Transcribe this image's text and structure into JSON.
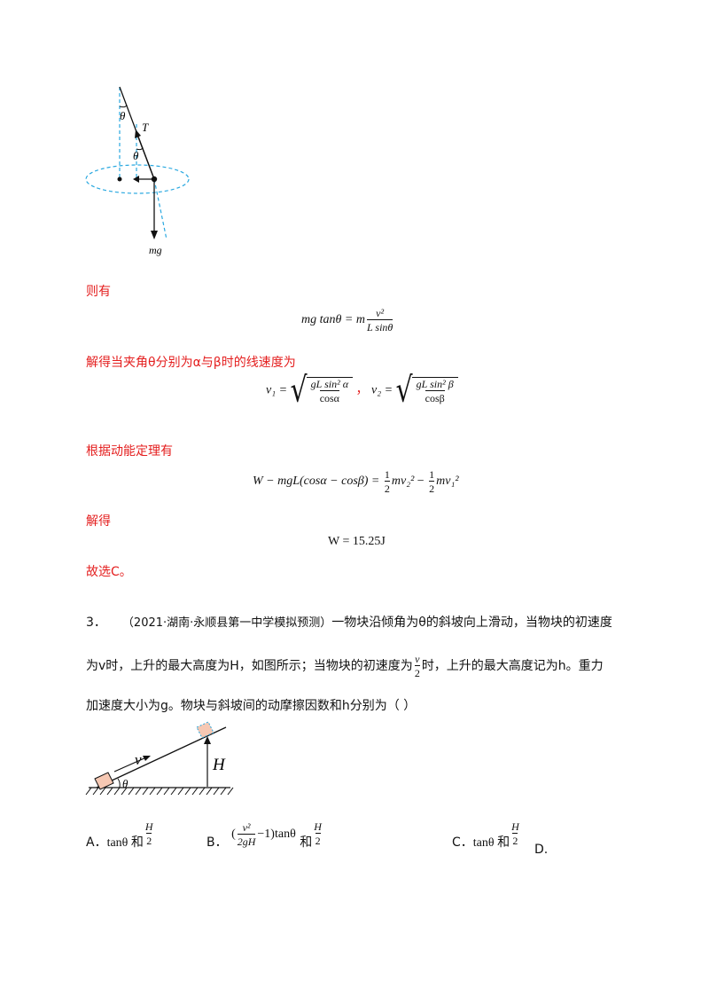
{
  "fig1": {
    "label_theta_top": "θ",
    "label_T": "T",
    "label_theta_mid": "θ",
    "label_mg": "mg"
  },
  "solution": {
    "line1": "则有",
    "eq1": {
      "lhs": "mg tanθ = m",
      "num": "v²",
      "den": "L sinθ"
    },
    "line2": "解得当夹角θ分别为α与β时的线速度为",
    "eq2": {
      "v1": "v₁ =",
      "v1_num": "gL sin² α",
      "v1_den": "cosα",
      "sep": "，",
      "v2": "v₂ =",
      "v2_num": "gL sin² β",
      "v2_den": "cosβ"
    },
    "line3": "根据动能定理有",
    "eq3": {
      "lhs": "W − mgL(cosα − cosβ) =",
      "half": "1",
      "two": "2",
      "t1": "mv₂²",
      "minus": "−",
      "t2": "mv₁²"
    },
    "line4": "解得",
    "eq4": "W = 15.25J",
    "line5": "故选C。"
  },
  "question": {
    "number": "3．",
    "source": "（2021·湖南·永顺县第一中学模拟预测）",
    "text1": "一物块沿倾角为θ的斜坡向上滑动，当物块的初速度",
    "text2a": "为v时，上升的最大高度为H，如图所示；当物块的初速度为",
    "text2_num": "v",
    "text2_den": "2",
    "text2b": "时，上升的最大高度记为h。重力",
    "text3": "加速度大小为g。物块与斜坡间的动摩擦因数和h分别为（    ）"
  },
  "fig2": {
    "label_v": "v",
    "label_theta": "θ",
    "label_H": "H"
  },
  "options": {
    "A_label": "A．",
    "A_text": "tanθ 和",
    "A_num": "H",
    "A_den": "2",
    "B_label": "B．",
    "B_pre": "(",
    "B_num": "v²",
    "B_den": "2gH",
    "B_post": "−1)tanθ",
    "B_and": "和",
    "B_num2": "H",
    "B_den2": "2",
    "C_label": "C．",
    "C_text": "tanθ 和",
    "C_num": "H",
    "C_den": "2",
    "D_label": "D."
  }
}
